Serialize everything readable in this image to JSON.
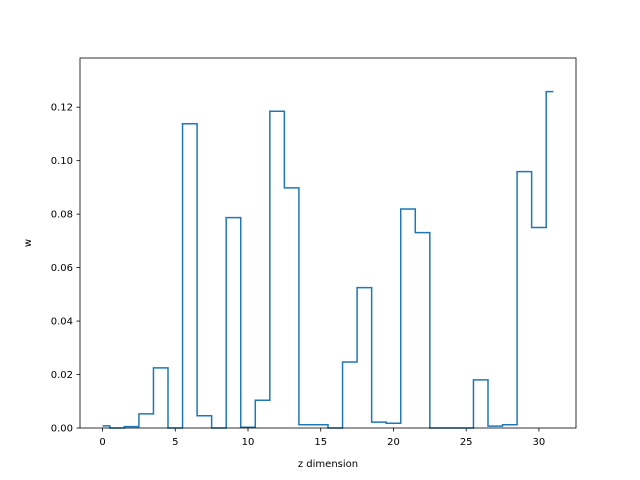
{
  "chart_data": {
    "type": "line",
    "style": "step",
    "xlabel": "z dimension",
    "ylabel": "w",
    "x": [
      0,
      1,
      2,
      3,
      4,
      5,
      6,
      7,
      8,
      9,
      10,
      11,
      12,
      13,
      14,
      15,
      16,
      17,
      18,
      19,
      20,
      21,
      22,
      23,
      24,
      25,
      26,
      27,
      28,
      29,
      30,
      31
    ],
    "values": [
      0.0008,
      0.0,
      0.0005,
      0.0053,
      0.0225,
      0.0,
      0.1138,
      0.0046,
      0.0,
      0.0787,
      0.0003,
      0.0104,
      0.1185,
      0.0898,
      0.0012,
      0.0012,
      0.0,
      0.0247,
      0.0525,
      0.0022,
      0.0018,
      0.0819,
      0.0731,
      0.0,
      0.0,
      0.0,
      0.018,
      0.0007,
      0.0012,
      0.0959,
      0.075,
      0.1258
    ],
    "xlim": [
      -1.55,
      32.55
    ],
    "ylim": [
      0,
      0.1384
    ],
    "xticks": [
      0,
      5,
      10,
      15,
      20,
      25,
      30
    ],
    "yticks": [
      0.0,
      0.02,
      0.04,
      0.06,
      0.08,
      0.1,
      0.12
    ],
    "ytick_labels": [
      "0.00",
      "0.02",
      "0.04",
      "0.06",
      "0.08",
      "0.10",
      "0.12"
    ],
    "color": "#1f77b4",
    "grid": false
  }
}
